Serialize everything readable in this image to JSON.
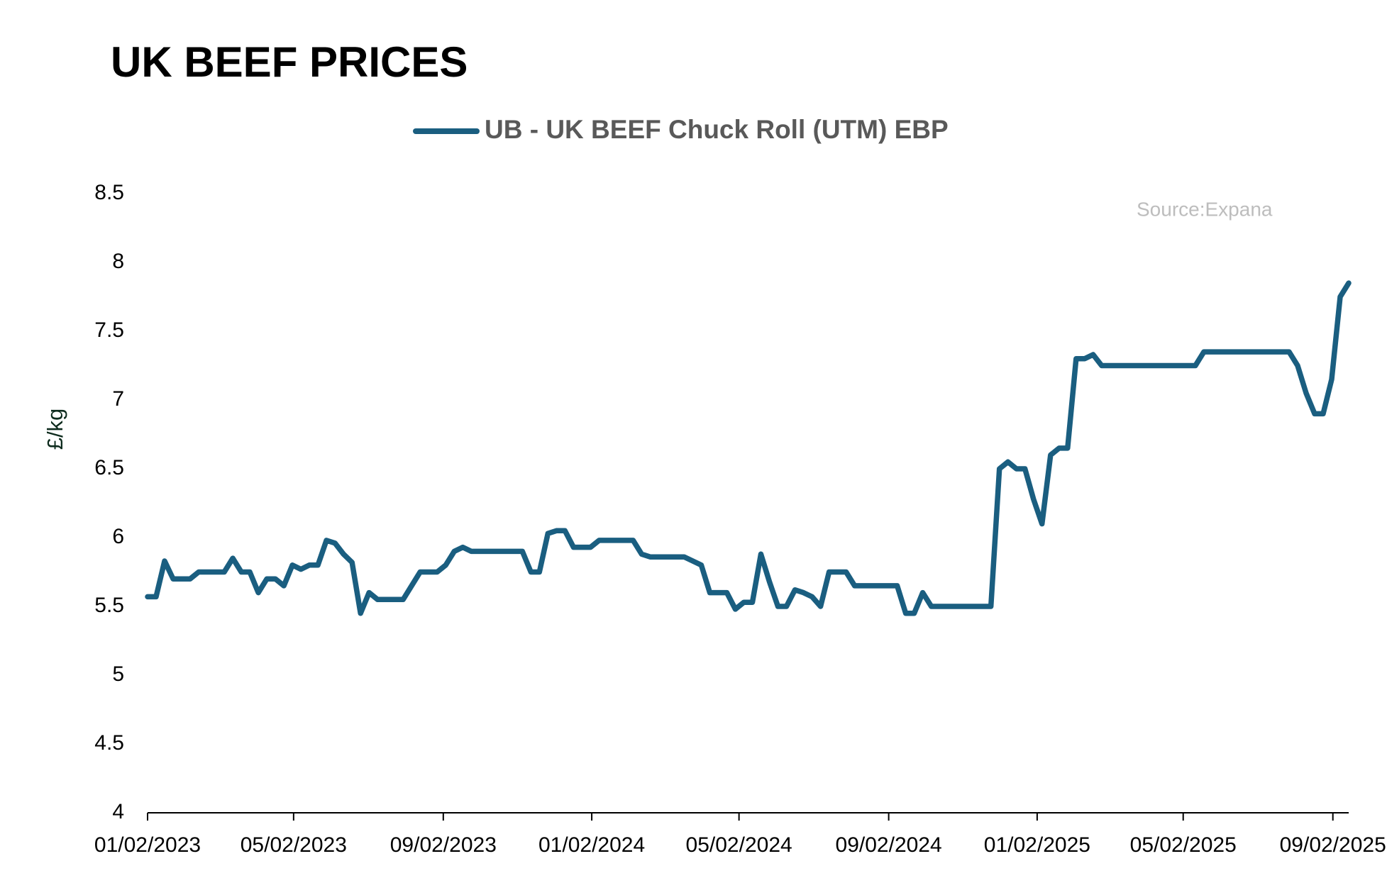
{
  "chart_data": {
    "type": "line",
    "title": "UK BEEF PRICES",
    "source": "Source:Expana",
    "ylabel": "£/kg",
    "legend": "top",
    "grid": false,
    "x": [
      "2023-01-02",
      "2023-01-09",
      "2023-01-16",
      "2023-01-23",
      "2023-02-06",
      "2023-02-13",
      "2023-03-06",
      "2023-03-13",
      "2023-03-20",
      "2023-03-27",
      "2023-04-03",
      "2023-04-10",
      "2023-04-17",
      "2023-04-24",
      "2023-05-01",
      "2023-05-08",
      "2023-05-15",
      "2023-05-22",
      "2023-05-29",
      "2023-06-05",
      "2023-06-12",
      "2023-06-19",
      "2023-06-26",
      "2023-07-03",
      "2023-07-10",
      "2023-07-31",
      "2023-08-07",
      "2023-08-14",
      "2023-08-28",
      "2023-09-04",
      "2023-09-11",
      "2023-09-18",
      "2023-09-25",
      "2023-11-06",
      "2023-11-13",
      "2023-11-20",
      "2023-11-27",
      "2023-12-04",
      "2023-12-11",
      "2023-12-18",
      "2024-01-01",
      "2024-01-08",
      "2024-02-05",
      "2024-02-12",
      "2024-02-19",
      "2024-03-18",
      "2024-03-25",
      "2024-04-01",
      "2024-04-08",
      "2024-04-22",
      "2024-04-29",
      "2024-05-06",
      "2024-05-13",
      "2024-05-20",
      "2024-05-27",
      "2024-06-03",
      "2024-06-10",
      "2024-06-17",
      "2024-06-24",
      "2024-07-01",
      "2024-07-08",
      "2024-07-15",
      "2024-07-29",
      "2024-08-05",
      "2024-09-09",
      "2024-09-16",
      "2024-09-23",
      "2024-09-30",
      "2024-10-07",
      "2024-11-25",
      "2024-12-02",
      "2024-12-09",
      "2024-12-16",
      "2024-12-23",
      "2024-12-30",
      "2025-01-06",
      "2025-01-13",
      "2025-01-20",
      "2025-01-27",
      "2025-02-03",
      "2025-02-10",
      "2025-02-17",
      "2025-02-24",
      "2025-05-12",
      "2025-05-19",
      "2025-07-28",
      "2025-08-04",
      "2025-08-11",
      "2025-08-18",
      "2025-08-25",
      "2025-09-01",
      "2025-09-08",
      "2025-09-15"
    ],
    "series": [
      {
        "name": "UB - UK BEEF Chuck Roll (UTM) EBP",
        "color": "#1a5e80",
        "values": [
          5.57,
          5.57,
          5.83,
          5.7,
          5.7,
          5.75,
          5.75,
          5.85,
          5.75,
          5.75,
          5.6,
          5.7,
          5.7,
          5.65,
          5.8,
          5.77,
          5.8,
          5.8,
          5.98,
          5.96,
          5.88,
          5.82,
          5.45,
          5.6,
          5.55,
          5.55,
          5.65,
          5.75,
          5.75,
          5.8,
          5.9,
          5.93,
          5.9,
          5.9,
          5.75,
          5.75,
          6.03,
          6.05,
          6.05,
          5.93,
          5.93,
          5.98,
          5.98,
          5.88,
          5.86,
          5.86,
          5.83,
          5.8,
          5.6,
          5.6,
          5.48,
          5.53,
          5.53,
          5.88,
          5.68,
          5.5,
          5.5,
          5.62,
          5.6,
          5.57,
          5.5,
          5.75,
          5.75,
          5.65,
          5.65,
          5.45,
          5.45,
          5.6,
          5.5,
          5.5,
          6.5,
          6.55,
          6.5,
          6.5,
          6.28,
          6.1,
          6.6,
          6.65,
          6.65,
          7.3,
          7.3,
          7.33,
          7.25,
          7.25,
          7.35,
          7.35,
          7.25,
          7.05,
          6.9,
          6.9,
          7.15,
          7.75,
          7.85
        ]
      }
    ],
    "xlim": [
      "2023-01-02",
      "2025-09-15"
    ],
    "xticks": [
      {
        "value": "2023-01-02",
        "label": "01/02/2023"
      },
      {
        "value": "2023-05-02",
        "label": "05/02/2023"
      },
      {
        "value": "2023-09-02",
        "label": "09/02/2023"
      },
      {
        "value": "2024-01-02",
        "label": "01/02/2024"
      },
      {
        "value": "2024-05-02",
        "label": "05/02/2024"
      },
      {
        "value": "2024-09-02",
        "label": "09/02/2024"
      },
      {
        "value": "2025-01-02",
        "label": "01/02/2025"
      },
      {
        "value": "2025-05-02",
        "label": "05/02/2025"
      },
      {
        "value": "2025-09-02",
        "label": "09/02/2025"
      }
    ],
    "ylim": [
      4,
      8.5
    ],
    "yticks": [
      4,
      4.5,
      5,
      5.5,
      6,
      6.5,
      7,
      7.5,
      8,
      8.5
    ]
  }
}
